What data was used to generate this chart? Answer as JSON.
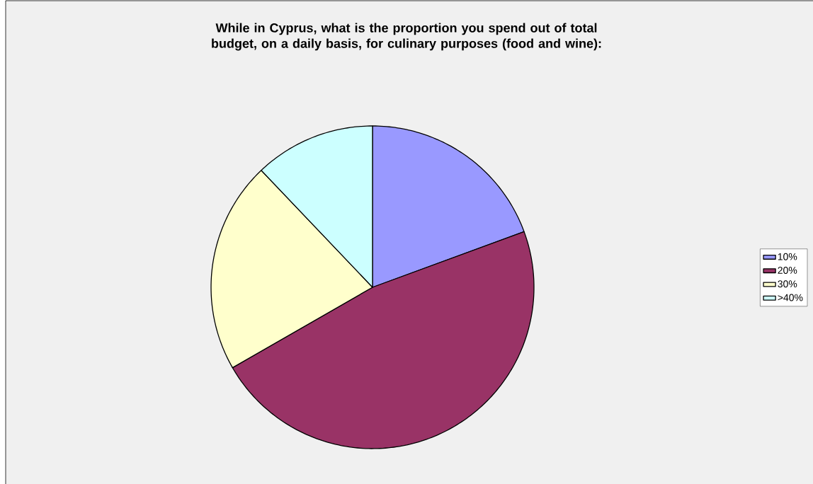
{
  "chart_data": {
    "type": "pie",
    "title": "While in Cyprus, what is the proportion you spend out of total budget, on a daily basis, for culinary purposes (food and wine):",
    "categories": [
      "10%",
      "20%",
      "30%",
      ">40%"
    ],
    "values": [
      19.4,
      47.3,
      21.2,
      12.1
    ],
    "colors": [
      "#9999ff",
      "#993366",
      "#ffffcc",
      "#ccffff"
    ],
    "legend": "right"
  }
}
